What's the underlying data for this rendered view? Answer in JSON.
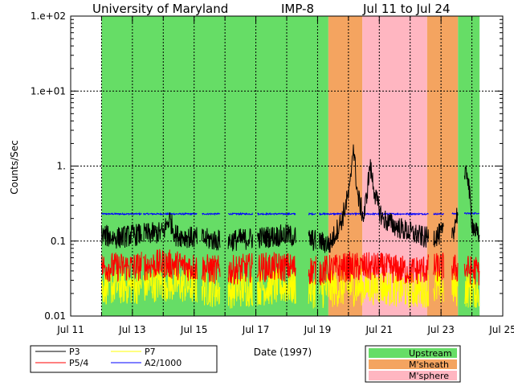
{
  "chart_data": {
    "type": "line",
    "title_parts": [
      "University of Maryland",
      "IMP-8",
      "Jul 11 to Jul 24"
    ],
    "xlabel": "Date (1997)",
    "ylabel": "Counts/Sec",
    "yscale": "log",
    "ylim": [
      0.01,
      100
    ],
    "xlim": [
      11,
      25
    ],
    "x_tick_values": [
      11,
      13,
      15,
      17,
      19,
      21,
      23,
      25
    ],
    "x_tick_labels": [
      "Jul 11",
      "Jul 13",
      "Jul 15",
      "Jul 17",
      "Jul 19",
      "Jul 21",
      "Jul 23",
      "Jul 25"
    ],
    "y_tick_values": [
      0.01,
      0.1,
      1,
      10,
      100
    ],
    "y_tick_labels": [
      "0.01",
      "0.1",
      "1.",
      "1.e+01",
      "1.e+02"
    ],
    "grid": "dotted",
    "regions": [
      {
        "label": "Upstream",
        "color": "#66dd66",
        "start": 12.0,
        "end": 19.35
      },
      {
        "label": "M'sheath",
        "color": "#f4a460",
        "start": 19.35,
        "end": 20.45
      },
      {
        "label": "M'sphere",
        "color": "#ffb6c1",
        "start": 20.45,
        "end": 22.55
      },
      {
        "label": "M'sheath",
        "color": "#f4a460",
        "start": 22.55,
        "end": 23.55
      },
      {
        "label": "Upstream",
        "color": "#66dd66",
        "start": 23.55,
        "end": 24.25
      }
    ],
    "region_legend": [
      {
        "label": "Upstream",
        "color": "#66dd66"
      },
      {
        "label": "M'sheath",
        "color": "#f4a460"
      },
      {
        "label": "M'sphere",
        "color": "#ffb6c1"
      }
    ],
    "series_legend": [
      {
        "name": "P3",
        "color": "#000000"
      },
      {
        "name": "P7",
        "color": "#ffff00"
      },
      {
        "name": "P5/4",
        "color": "#ff0000"
      },
      {
        "name": "A2/1000",
        "color": "#0000ff"
      }
    ],
    "data_gaps": [
      [
        13.3,
        13.35
      ],
      [
        15.1,
        15.25
      ],
      [
        15.85,
        16.1
      ],
      [
        16.9,
        17.05
      ],
      [
        18.3,
        18.7
      ],
      [
        18.95,
        19.05
      ],
      [
        22.6,
        22.75
      ],
      [
        23.1,
        23.35
      ],
      [
        23.55,
        23.75
      ]
    ],
    "series": [
      {
        "name": "P3",
        "color": "#000000",
        "keypoints": [
          [
            12.0,
            0.12
          ],
          [
            12.5,
            0.11
          ],
          [
            13.0,
            0.12
          ],
          [
            14.0,
            0.13
          ],
          [
            14.2,
            0.2
          ],
          [
            14.4,
            0.12
          ],
          [
            15.0,
            0.11
          ],
          [
            16.0,
            0.1
          ],
          [
            17.0,
            0.11
          ],
          [
            18.0,
            0.12
          ],
          [
            19.0,
            0.1
          ],
          [
            19.4,
            0.09
          ],
          [
            19.8,
            0.2
          ],
          [
            20.05,
            0.5
          ],
          [
            20.15,
            2.0
          ],
          [
            20.3,
            0.4
          ],
          [
            20.5,
            0.2
          ],
          [
            20.7,
            1.0
          ],
          [
            20.9,
            0.35
          ],
          [
            21.1,
            0.2
          ],
          [
            21.5,
            0.16
          ],
          [
            22.0,
            0.13
          ],
          [
            22.5,
            0.11
          ],
          [
            22.9,
            0.12
          ],
          [
            23.4,
            0.14
          ],
          [
            23.85,
            0.9
          ],
          [
            24.0,
            0.18
          ],
          [
            24.25,
            0.1
          ]
        ],
        "noise": 0.15
      },
      {
        "name": "P5/4",
        "color": "#ff0000",
        "keypoints": [
          [
            12.0,
            0.045
          ],
          [
            13.0,
            0.045
          ],
          [
            14.0,
            0.05
          ],
          [
            15.0,
            0.045
          ],
          [
            16.0,
            0.04
          ],
          [
            17.0,
            0.045
          ],
          [
            18.0,
            0.045
          ],
          [
            19.0,
            0.04
          ],
          [
            20.0,
            0.045
          ],
          [
            21.0,
            0.045
          ],
          [
            22.0,
            0.04
          ],
          [
            23.0,
            0.045
          ],
          [
            24.25,
            0.04
          ]
        ],
        "noise": 0.2
      },
      {
        "name": "P7",
        "color": "#ffff00",
        "keypoints": [
          [
            12.0,
            0.025
          ],
          [
            13.0,
            0.025
          ],
          [
            14.0,
            0.028
          ],
          [
            15.0,
            0.025
          ],
          [
            16.0,
            0.022
          ],
          [
            17.0,
            0.024
          ],
          [
            18.0,
            0.025
          ],
          [
            19.0,
            0.022
          ],
          [
            20.0,
            0.024
          ],
          [
            21.0,
            0.025
          ],
          [
            22.0,
            0.022
          ],
          [
            23.0,
            0.024
          ],
          [
            24.25,
            0.022
          ]
        ],
        "noise": 0.25
      },
      {
        "name": "A2/1000",
        "color": "#0000ff",
        "keypoints": [
          [
            12.0,
            0.23
          ],
          [
            13.0,
            0.23
          ],
          [
            14.0,
            0.23
          ],
          [
            15.0,
            0.23
          ],
          [
            16.0,
            0.23
          ],
          [
            17.0,
            0.23
          ],
          [
            18.0,
            0.23
          ],
          [
            19.0,
            0.23
          ],
          [
            20.0,
            0.23
          ],
          [
            21.0,
            0.23
          ],
          [
            22.0,
            0.23
          ],
          [
            22.5,
            0.23
          ],
          [
            23.0,
            0.23
          ],
          [
            24.25,
            0.235
          ]
        ],
        "noise": 0.01
      }
    ]
  }
}
